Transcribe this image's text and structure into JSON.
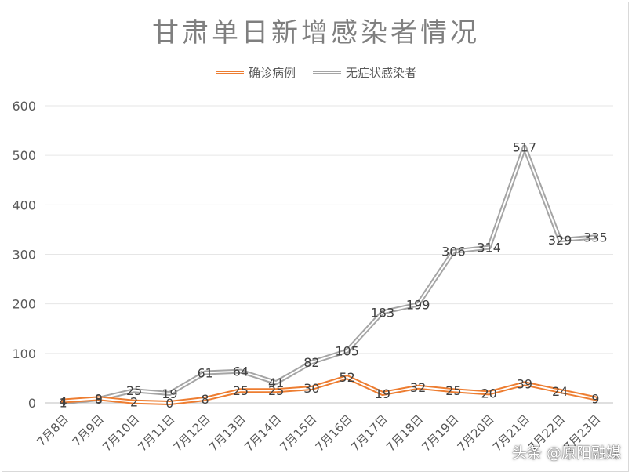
{
  "chart_data": {
    "type": "line",
    "title": "甘肃单日新增感染者情况",
    "xlabel": "",
    "ylabel": "",
    "ylim": [
      0,
      600
    ],
    "yticks": [
      0,
      100,
      200,
      300,
      400,
      500,
      600
    ],
    "grid": true,
    "legend_position": "top",
    "categories": [
      "7月8日",
      "7月9日",
      "7月10日",
      "7月11日",
      "7月12日",
      "7月13日",
      "7月14日",
      "7月15日",
      "7月16日",
      "7月17日",
      "7月18日",
      "7月19日",
      "7月20日",
      "7月21日",
      "7月22日",
      "7月23日"
    ],
    "series": [
      {
        "name": "确诊病例",
        "color": "#ed7d31",
        "values": [
          4,
          9,
          2,
          0,
          8,
          25,
          25,
          30,
          52,
          19,
          32,
          25,
          20,
          39,
          24,
          9
        ],
        "labels": [
          "4",
          "9",
          "2",
          "0",
          "8",
          "25",
          "25",
          "30",
          "52",
          "19",
          "32",
          "25",
          "20",
          "39",
          "24",
          "9"
        ]
      },
      {
        "name": "无症状感染者",
        "color": "#a5a5a5",
        "values": [
          1,
          8,
          25,
          19,
          61,
          64,
          41,
          82,
          105,
          183,
          199,
          306,
          314,
          517,
          329,
          335
        ],
        "labels": [
          "1",
          "8",
          "25",
          "19",
          "61",
          "64",
          "41",
          "82",
          "105",
          "183",
          "199",
          "306",
          "314",
          "517",
          "329",
          "335"
        ]
      }
    ]
  },
  "watermark": "头条 @原阳融媒"
}
